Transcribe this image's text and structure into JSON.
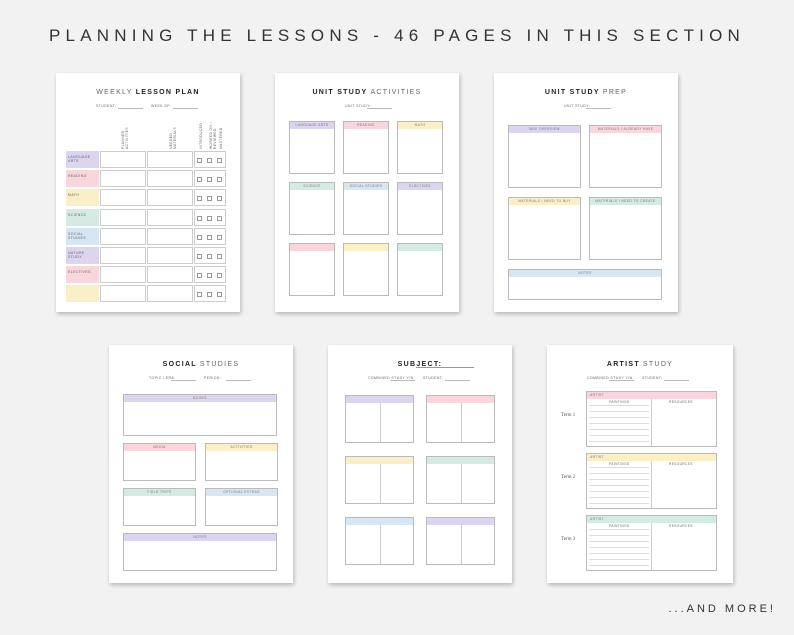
{
  "header": {
    "title": "PLANNING THE LESSONS - 46 PAGES IN THIS SECTION"
  },
  "pages": [
    {
      "title_light": "WEEKLY",
      "title_bold": "LESSON PLAN",
      "fields": [
        "STUDENT:",
        "WEEK OF:"
      ],
      "columns": [
        "PLANNED ACTIVITIES",
        "NEEDED MATERIALS",
        "INTRODUCED",
        "WORKED ON / REVIEWED",
        "MASTERED"
      ],
      "rows": [
        "LANGUAGE ARTS",
        "READING",
        "MATH",
        "SCIENCE",
        "SOCIAL STUDIES",
        "NATURE STUDY",
        "ELECTIVES"
      ]
    },
    {
      "title_bold": "UNIT STUDY",
      "title_light": "ACTIVITIES",
      "fields": [
        "UNIT STUDY:"
      ],
      "boxes": [
        "LANGUAGE ARTS",
        "READING",
        "MATH",
        "SCIENCE",
        "SOCIAL STUDIES",
        "ELECTIVES"
      ]
    },
    {
      "title_bold": "UNIT STUDY",
      "title_light": "PREP",
      "fields": [
        "UNIT STUDY:"
      ],
      "boxes": [
        "MINI OVERVIEW",
        "MATERIALS I ALREADY HAVE",
        "MATERIALS I NEED TO BUY",
        "MATERIALS I NEED TO CREATE",
        "NOTES"
      ]
    },
    {
      "title_bold": "SOCIAL",
      "title_light": "STUDIES",
      "fields": [
        "TOPIC / ERA:",
        "PERIOD:"
      ],
      "boxes": [
        "BOOKS",
        "MEDIA",
        "ACTIVITIES",
        "FIELD TRIPS",
        "OPTIONAL EXTRAS",
        "NOTES"
      ]
    },
    {
      "title_bold": "SUBJECT:",
      "fields": [
        "COMBINED STUDY Y/N",
        "STUDENT:"
      ]
    },
    {
      "title_bold": "ARTIST",
      "title_light": "STUDY",
      "fields": [
        "COMBINED STUDY Y/N",
        "STUDENT:"
      ],
      "terms": [
        "Term 1",
        "Term 2",
        "Term 3"
      ],
      "term_box": {
        "label": "ARTIST",
        "col1": "PAINTINGS",
        "col2": "RESOURCES"
      }
    }
  ],
  "footer": {
    "text": "...AND MORE!"
  }
}
